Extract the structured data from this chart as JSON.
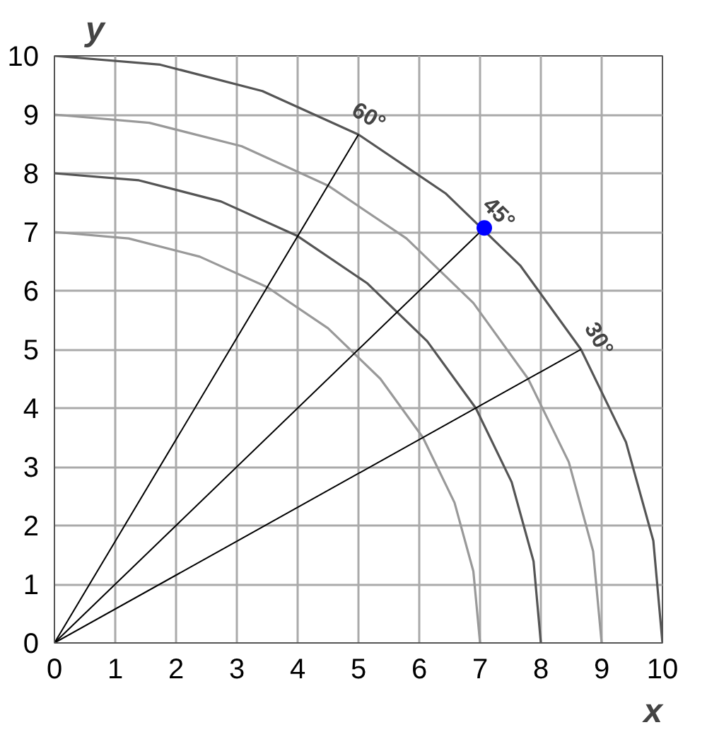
{
  "chart_data": {
    "type": "line",
    "xlabel": "x",
    "ylabel": "y",
    "xlim": [
      0,
      10
    ],
    "ylim": [
      0,
      10
    ],
    "xticks": [
      0,
      1,
      2,
      3,
      4,
      5,
      6,
      7,
      8,
      9,
      10
    ],
    "yticks": [
      0,
      1,
      2,
      3,
      4,
      5,
      6,
      7,
      8,
      9,
      10
    ],
    "grid": true,
    "marker": "none",
    "line_style": "solid",
    "series": [
      {
        "color": "#999999",
        "x": [
          7,
          6.89,
          6.58,
          6.06,
          5.36,
          4.5,
          3.5,
          2.39,
          1.22,
          0
        ],
        "values": [
          0,
          1.22,
          2.39,
          3.5,
          4.5,
          5.36,
          6.06,
          6.58,
          6.89,
          7
        ]
      },
      {
        "color": "#555555",
        "x": [
          8,
          7.88,
          7.52,
          6.93,
          6.13,
          5.14,
          4,
          2.74,
          1.39,
          0
        ],
        "values": [
          0,
          1.39,
          2.74,
          4,
          5.14,
          6.13,
          6.93,
          7.52,
          7.88,
          8
        ]
      },
      {
        "color": "#999999",
        "x": [
          9,
          8.86,
          8.46,
          7.79,
          6.89,
          5.79,
          4.5,
          3.08,
          1.56,
          0
        ],
        "values": [
          0,
          1.56,
          3.08,
          4.5,
          5.79,
          6.89,
          7.79,
          8.46,
          8.86,
          9
        ]
      },
      {
        "color": "#555555",
        "x": [
          10,
          9.85,
          9.4,
          8.66,
          7.66,
          6.43,
          5,
          3.42,
          1.74,
          0
        ],
        "values": [
          0,
          1.74,
          3.42,
          5,
          6.43,
          7.66,
          8.66,
          9.4,
          9.85,
          10
        ]
      },
      {
        "color": "#000000",
        "x": [
          0,
          5
        ],
        "values": [
          0,
          8.66
        ]
      },
      {
        "color": "#000000",
        "x": [
          0,
          7.07
        ],
        "values": [
          0,
          7.07
        ]
      },
      {
        "color": "#000000",
        "x": [
          0,
          8.66
        ],
        "values": [
          0,
          5
        ]
      },
      {
        "type": "scatter",
        "marker": "circle",
        "color": "#0000ff",
        "x": [
          7.07
        ],
        "values": [
          7.07
        ]
      }
    ],
    "annotations": [
      {
        "text": "60°",
        "x": 5,
        "y": 8.66
      },
      {
        "text": "45°",
        "x": 7.07,
        "y": 7.07
      },
      {
        "text": "30°",
        "x": 8.66,
        "y": 5
      }
    ]
  }
}
